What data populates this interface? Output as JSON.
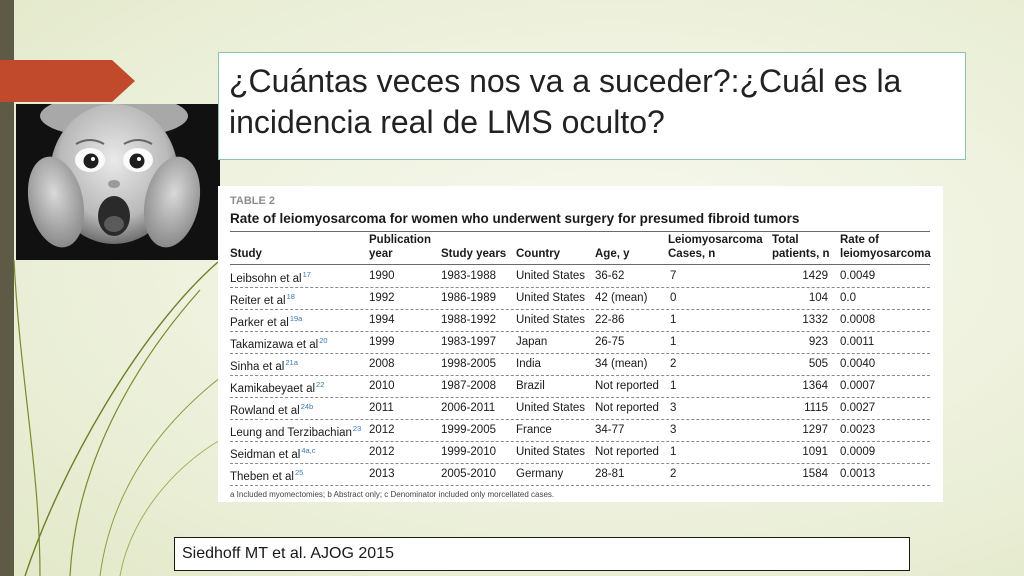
{
  "slide": {
    "title": "¿Cuántas veces nos va a suceder?:¿Cuál es la incidencia real de LMS oculto?",
    "reference": "Siedhoff MT et al. AJOG 2015"
  },
  "table": {
    "label": "TABLE 2",
    "title": "Rate of leiomyosarcoma for women who underwent surgery for presumed fibroid tumors",
    "headers": [
      "Study",
      "Publication\nyear",
      "Study years",
      "Country",
      "Age, y",
      "Leiomyosarcoma\nCases, n",
      "Total\npatients, n",
      "Rate of\nleiomyosarcoma"
    ],
    "rows": [
      {
        "study": "Leibsohn et al",
        "ref": "17",
        "year": "1990",
        "years": "1983-1988",
        "country": "United States",
        "age": "36-62",
        "cases": "7",
        "patients": "1429",
        "rate": "0.0049"
      },
      {
        "study": "Reiter et al",
        "ref": "18",
        "year": "1992",
        "years": "1986-1989",
        "country": "United States",
        "age": "42 (mean)",
        "cases": "0",
        "patients": "104",
        "rate": "0.0"
      },
      {
        "study": "Parker et al",
        "ref": "19a",
        "year": "1994",
        "years": "1988-1992",
        "country": "United States",
        "age": "22-86",
        "cases": "1",
        "patients": "1332",
        "rate": "0.0008"
      },
      {
        "study": "Takamizawa et al",
        "ref": "20",
        "year": "1999",
        "years": "1983-1997",
        "country": "Japan",
        "age": "26-75",
        "cases": "1",
        "patients": "923",
        "rate": "0.0011"
      },
      {
        "study": "Sinha et al",
        "ref": "21a",
        "year": "2008",
        "years": "1998-2005",
        "country": "India",
        "age": "34 (mean)",
        "cases": "2",
        "patients": "505",
        "rate": "0.0040"
      },
      {
        "study": "Kamikabeyaet al",
        "ref": "22",
        "year": "2010",
        "years": "1987-2008",
        "country": "Brazil",
        "age": "Not reported",
        "cases": "1",
        "patients": "1364",
        "rate": "0.0007"
      },
      {
        "study": "Rowland et al",
        "ref": "24b",
        "year": "2011",
        "years": "2006-2011",
        "country": "United States",
        "age": "Not reported",
        "cases": "3",
        "patients": "1115",
        "rate": "0.0027"
      },
      {
        "study": "Leung and Terzibachian",
        "ref": "23",
        "year": "2012",
        "years": "1999-2005",
        "country": "France",
        "age": "34-77",
        "cases": "3",
        "patients": "1297",
        "rate": "0.0023"
      },
      {
        "study": "Seidman et al",
        "ref": "4a,c",
        "year": "2012",
        "years": "1999-2010",
        "country": "United States",
        "age": "Not reported",
        "cases": "1",
        "patients": "1091",
        "rate": "0.0009"
      },
      {
        "study": "Theben et al",
        "ref": "25",
        "year": "2013",
        "years": "2005-2010",
        "country": "Germany",
        "age": "28-81",
        "cases": "2",
        "patients": "1584",
        "rate": "0.0013"
      }
    ],
    "footnote": "a Included myomectomies; b Abstract only; c Denominator included only morcellated cases."
  },
  "colors": {
    "background": "#eef2df",
    "accent_arrow": "#c24a2c",
    "left_bar": "#5f5a46",
    "title_border": "#8fc1b3",
    "decor_lines": "#7a8a2e",
    "superscript": "#3a7ab8"
  }
}
